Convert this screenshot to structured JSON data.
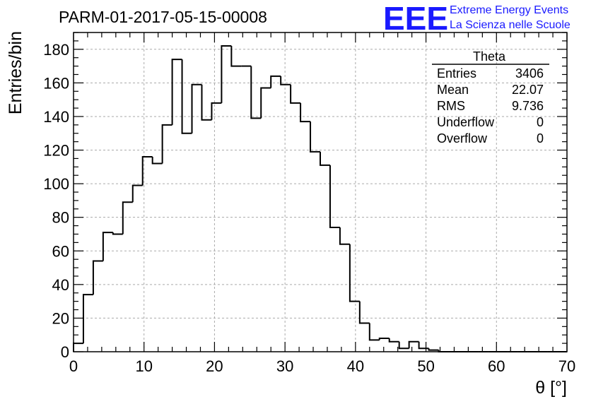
{
  "title": "PARM-01-2017-05-15-00008",
  "logo": {
    "mark": "EEE",
    "line1": "Extreme Energy Events",
    "line2": "La Scienza nelle Scuole",
    "color": "#1a1aff"
  },
  "chart_data": {
    "type": "bar",
    "style": "step-histogram",
    "title": "PARM-01-2017-05-15-00008",
    "xlabel": "θ [°]",
    "ylabel": "Entries/bin",
    "xlim": [
      0,
      70
    ],
    "ylim": [
      0,
      190
    ],
    "grid": true,
    "bin_width": 1.4,
    "x_ticks": [
      0,
      10,
      20,
      30,
      40,
      50,
      60,
      70
    ],
    "y_ticks": [
      0,
      20,
      40,
      60,
      80,
      100,
      120,
      140,
      160,
      180
    ],
    "values": [
      5,
      34,
      54,
      71,
      70,
      89,
      99,
      116,
      112,
      135,
      174,
      130,
      159,
      138,
      148,
      182,
      170,
      170,
      139,
      157,
      164,
      159,
      148,
      137,
      119,
      111,
      74,
      64,
      30,
      17,
      7,
      8,
      6,
      2,
      6,
      2,
      1,
      0,
      0,
      0,
      0,
      0,
      0,
      0,
      0,
      0,
      0,
      0,
      0,
      0
    ],
    "stats_box": {
      "name": "Theta",
      "placement": "top-right",
      "rows": [
        {
          "label": "Entries",
          "value": "3406"
        },
        {
          "label": "Mean",
          "value": "22.07"
        },
        {
          "label": "RMS",
          "value": "9.736"
        },
        {
          "label": "Underflow",
          "value": "0"
        },
        {
          "label": "Overflow",
          "value": "0"
        }
      ]
    }
  }
}
